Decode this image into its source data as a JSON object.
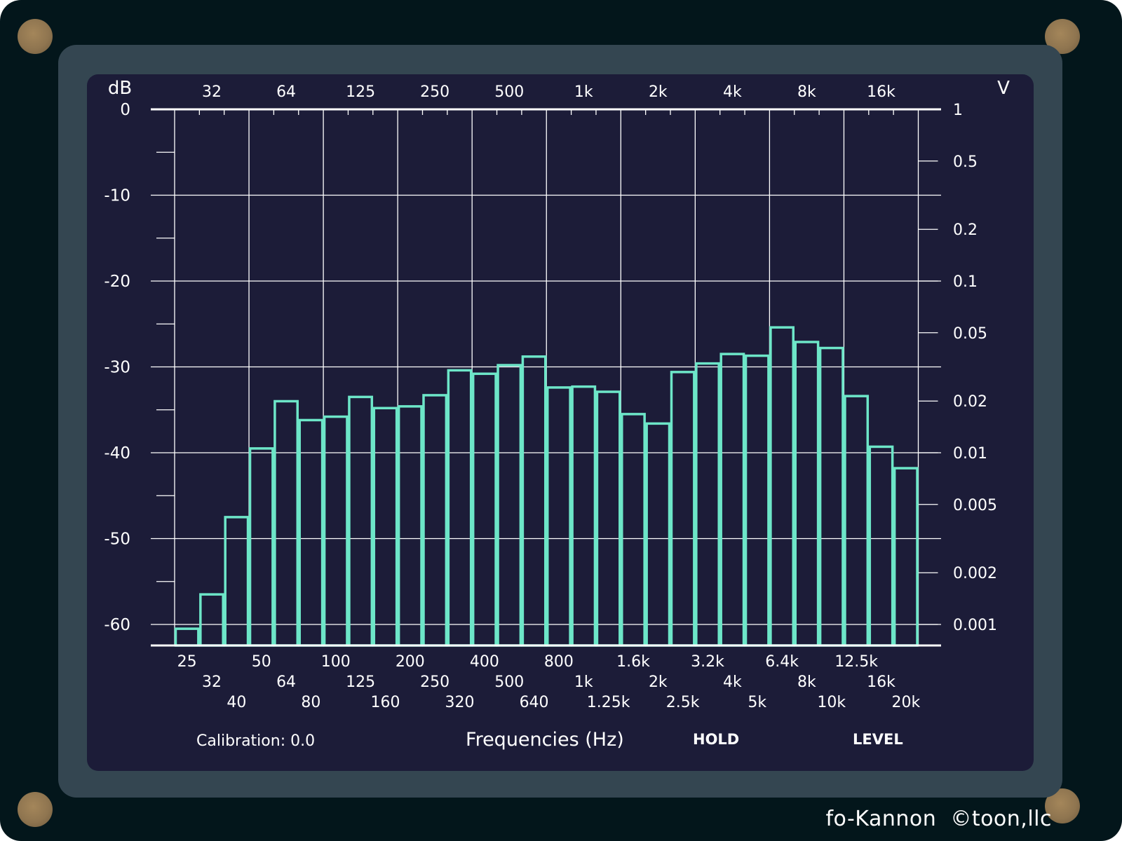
{
  "app": {
    "brand": "fo-Kannon",
    "copyright": "©toon,llc"
  },
  "colors": {
    "device_bg": "#03161b",
    "bezel": "#344651",
    "screen_bg": "#1c1c38",
    "grid": "#ffffff",
    "bars": "#6de6c8",
    "screws": "#8f7550"
  },
  "footer": {
    "calibration": "Calibration: 0.0",
    "hold_button": "HOLD",
    "level_button": "LEVEL"
  },
  "chart_data": {
    "type": "bar",
    "title": "",
    "xlabel": "Frequencies (Hz)",
    "ylabel": "dB",
    "ylabel_right": "V",
    "ylim": [
      -62.5,
      0
    ],
    "grid": true,
    "top_axis_ticks": [
      "32",
      "64",
      "125",
      "250",
      "500",
      "1k",
      "2k",
      "4k",
      "8k",
      "16k"
    ],
    "y_ticks_left": [
      "0",
      "-10",
      "-20",
      "-30",
      "-40",
      "-50",
      "-60"
    ],
    "y_ticks_right": [
      {
        "label": "1",
        "value": 1
      },
      {
        "label": "0.5",
        "value": 0.5
      },
      {
        "label": "0.2",
        "value": 0.2
      },
      {
        "label": "0.1",
        "value": 0.1
      },
      {
        "label": "0.05",
        "value": 0.05
      },
      {
        "label": "0.02",
        "value": 0.02
      },
      {
        "label": "0.01",
        "value": 0.01
      },
      {
        "label": "0.005",
        "value": 0.005
      },
      {
        "label": "0.002",
        "value": 0.002
      },
      {
        "label": "0.001",
        "value": 0.001
      }
    ],
    "categories": [
      "25",
      "32",
      "40",
      "50",
      "64",
      "80",
      "100",
      "125",
      "160",
      "200",
      "250",
      "320",
      "400",
      "500",
      "640",
      "800",
      "1k",
      "1.25k",
      "1.6k",
      "2k",
      "2.5k",
      "3.2k",
      "4k",
      "5k",
      "6.4k",
      "8k",
      "10k",
      "12.5k",
      "16k",
      "20k"
    ],
    "values": [
      -60.5,
      -56.5,
      -47.5,
      -39.5,
      -34,
      -36.2,
      -35.8,
      -33.5,
      -34.8,
      -34.6,
      -33.3,
      -30.4,
      -30.8,
      -29.8,
      -28.8,
      -32.4,
      -32.3,
      -32.9,
      -35.5,
      -36.6,
      -30.6,
      -29.6,
      -28.5,
      -28.7,
      -25.4,
      -27.1,
      -27.8,
      -33.4,
      -39.3,
      -41.8
    ]
  }
}
